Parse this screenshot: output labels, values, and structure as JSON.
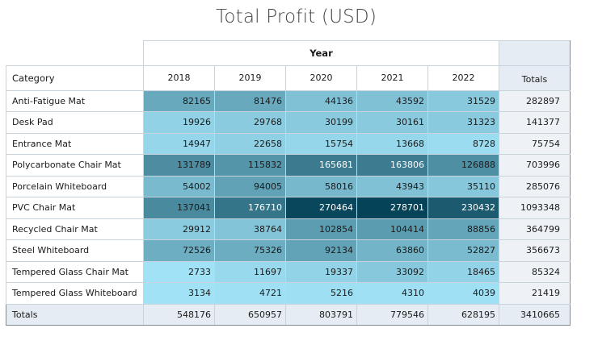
{
  "chart_data": {
    "type": "table",
    "title": "Total Profit (USD)",
    "column_group_label": "Year",
    "row_header_label": "Category",
    "totals_label": "Totals",
    "columns": [
      "2018",
      "2019",
      "2020",
      "2021",
      "2022"
    ],
    "rows": [
      {
        "category": "Anti-Fatigue Mat",
        "values": [
          82165,
          81476,
          44136,
          43592,
          31529
        ],
        "total": 282897
      },
      {
        "category": "Desk Pad",
        "values": [
          19926,
          29768,
          30199,
          30161,
          31323
        ],
        "total": 141377
      },
      {
        "category": "Entrance Mat",
        "values": [
          14947,
          22658,
          15754,
          13668,
          8728
        ],
        "total": 75754
      },
      {
        "category": "Polycarbonate Chair Mat",
        "values": [
          131789,
          115832,
          165681,
          163806,
          126888
        ],
        "total": 703996
      },
      {
        "category": "Porcelain Whiteboard",
        "values": [
          54002,
          94005,
          58016,
          43943,
          35110
        ],
        "total": 285076
      },
      {
        "category": "PVC Chair Mat",
        "values": [
          137041,
          176710,
          270464,
          278701,
          230432
        ],
        "total": 1093348
      },
      {
        "category": "Recycled Chair Mat",
        "values": [
          29912,
          38764,
          102854,
          104414,
          88856
        ],
        "total": 364799
      },
      {
        "category": "Steel Whiteboard",
        "values": [
          72526,
          75326,
          92134,
          63860,
          52827
        ],
        "total": 356673
      },
      {
        "category": "Tempered Glass Chair Mat",
        "values": [
          2733,
          11697,
          19337,
          33092,
          18465
        ],
        "total": 85324
      },
      {
        "category": "Tempered Glass Whiteboard",
        "values": [
          3134,
          4721,
          5216,
          4310,
          4039
        ],
        "total": 21419
      }
    ],
    "column_totals": [
      548176,
      650957,
      803791,
      779546,
      628195
    ],
    "grand_total": 3410665,
    "color_scale": {
      "low": "#a5e6fa",
      "high": "#044358"
    }
  }
}
